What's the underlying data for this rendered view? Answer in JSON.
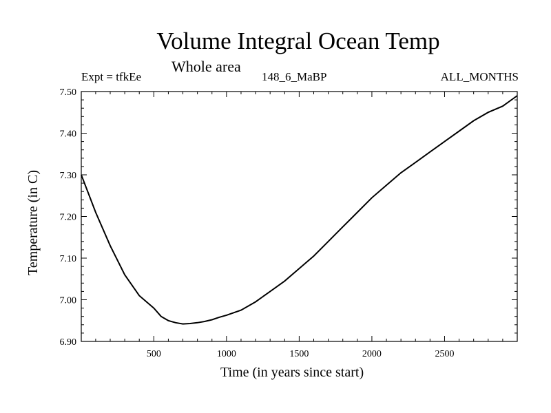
{
  "header": {
    "experiment": "Expt = tfkEe",
    "run": "148_6_MaBP",
    "months": "ALL_MONTHS",
    "region": "Whole area"
  },
  "chart_data": {
    "type": "line",
    "title": "Volume Integral Ocean Temp",
    "subtitle": "Whole area",
    "xlabel": "Time (in years since start)",
    "ylabel": "Temperature (in C)",
    "xlim": [
      1,
      3000
    ],
    "ylim": [
      6.9,
      7.5
    ],
    "x_ticks": [
      500,
      1000,
      1500,
      2000,
      2500
    ],
    "x_tick_labels": [
      "500",
      "1000",
      "1500",
      "2000",
      "2500"
    ],
    "y_ticks": [
      6.9,
      7.0,
      7.1,
      7.2,
      7.3,
      7.4,
      7.5
    ],
    "y_tick_labels": [
      "6.90",
      "7.00",
      "7.10",
      "7.20",
      "7.30",
      "7.40",
      "7.50"
    ],
    "grid": false,
    "series": [
      {
        "color": "#000000",
        "x": [
          1,
          100,
          200,
          300,
          400,
          500,
          550,
          600,
          650,
          700,
          750,
          800,
          850,
          900,
          950,
          1000,
          1100,
          1200,
          1300,
          1400,
          1500,
          1600,
          1700,
          1800,
          1900,
          2000,
          2100,
          2200,
          2300,
          2400,
          2500,
          2600,
          2700,
          2800,
          2900,
          3000
        ],
        "y": [
          7.3,
          7.21,
          7.13,
          7.06,
          7.01,
          6.98,
          6.96,
          6.95,
          6.945,
          6.942,
          6.943,
          6.945,
          6.948,
          6.952,
          6.958,
          6.963,
          6.975,
          6.995,
          7.02,
          7.045,
          7.075,
          7.105,
          7.14,
          7.175,
          7.21,
          7.245,
          7.275,
          7.305,
          7.33,
          7.355,
          7.38,
          7.405,
          7.43,
          7.45,
          7.465,
          7.49
        ]
      }
    ]
  }
}
